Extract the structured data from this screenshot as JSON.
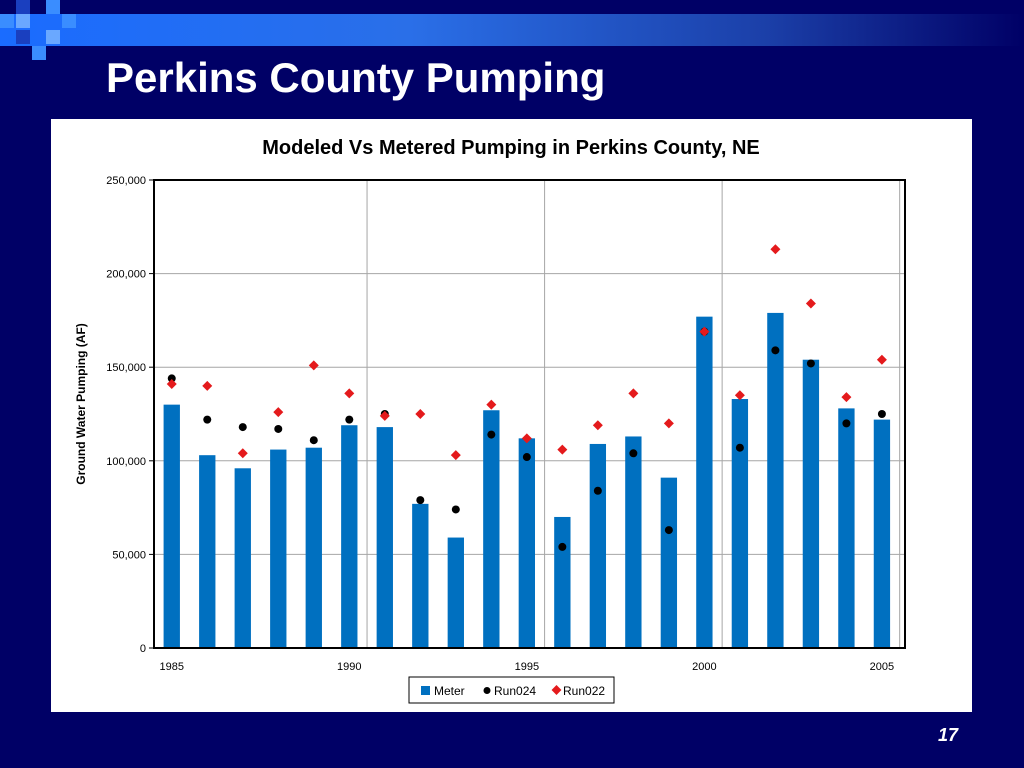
{
  "slide": {
    "title": "Perkins County Pumping",
    "page_number": "17"
  },
  "colors": {
    "background": "#000066",
    "meter": "#0070C0",
    "run024": "#000000",
    "run022": "#E41A1C"
  },
  "chart_data": {
    "type": "bar",
    "title": "Modeled Vs Metered Pumping in Perkins County, NE",
    "xlabel": "",
    "ylabel": "Ground Water Pumping (AF)",
    "ylim": [
      0,
      250000
    ],
    "yticks": [
      0,
      50000,
      100000,
      150000,
      200000,
      250000
    ],
    "ytick_labels": [
      "0",
      "50,000",
      "100,000",
      "150,000",
      "200,000",
      "250,000"
    ],
    "xlim": [
      1985,
      2005
    ],
    "xticks": [
      1985,
      1990,
      1995,
      2000,
      2005
    ],
    "xtick_labels": [
      "1985",
      "1990",
      "1995",
      "2000",
      "2005"
    ],
    "grid": "vertical lines at x ticks, horizontal lines at y ticks",
    "legend_position": "bottom",
    "x": [
      1985,
      1986,
      1987,
      1988,
      1989,
      1990,
      1991,
      1992,
      1993,
      1994,
      1995,
      1996,
      1997,
      1998,
      1999,
      2000,
      2001,
      2002,
      2003,
      2004,
      2005
    ],
    "series": [
      {
        "name": "Meter",
        "kind": "bar",
        "color": "#0070C0",
        "values": [
          130000,
          103000,
          96000,
          106000,
          107000,
          119000,
          118000,
          77000,
          59000,
          127000,
          112000,
          70000,
          109000,
          113000,
          91000,
          177000,
          133000,
          179000,
          154000,
          128000,
          122000
        ]
      },
      {
        "name": "Run024",
        "kind": "marker-circle",
        "color": "#000000",
        "values": [
          144000,
          122000,
          118000,
          117000,
          111000,
          122000,
          125000,
          79000,
          74000,
          114000,
          102000,
          54000,
          84000,
          104000,
          63000,
          169000,
          107000,
          159000,
          152000,
          120000,
          125000
        ]
      },
      {
        "name": "Run022",
        "kind": "marker-diamond",
        "color": "#E41A1C",
        "values": [
          141000,
          140000,
          104000,
          126000,
          151000,
          136000,
          124000,
          125000,
          103000,
          130000,
          112000,
          106000,
          119000,
          136000,
          120000,
          169000,
          135000,
          213000,
          184000,
          134000,
          154000
        ]
      }
    ]
  }
}
